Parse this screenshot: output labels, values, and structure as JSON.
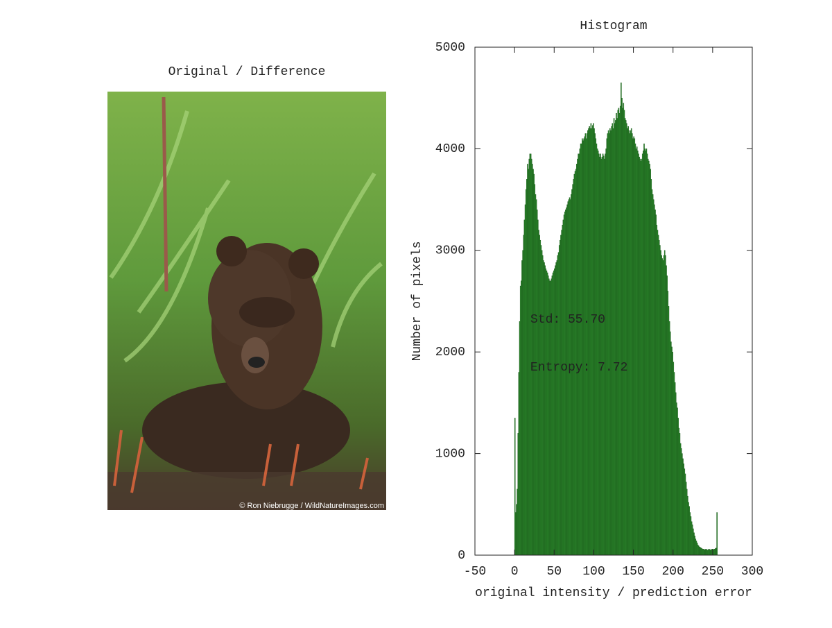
{
  "image_panel": {
    "title": "Original / Difference",
    "credit": "© Ron Niebrugge / WildNatureImages.com"
  },
  "chart_data": {
    "type": "histogram",
    "title": "Histogram",
    "xlabel": "original intensity / prediction error",
    "ylabel": "Number of pixels",
    "annotations": [
      "Std: 55.70",
      "Entropy: 7.72"
    ],
    "color": "#2e8b2e",
    "edgecolor": "#145214",
    "xlim": [
      -50,
      300
    ],
    "ylim": [
      0,
      5000
    ],
    "xticks": [
      -50,
      0,
      50,
      100,
      150,
      200,
      250,
      300
    ],
    "yticks": [
      0,
      1000,
      2000,
      3000,
      4000,
      5000
    ],
    "bins": [
      0,
      1,
      2,
      3,
      4,
      5,
      6,
      7,
      8,
      9,
      10,
      11,
      12,
      13,
      14,
      15,
      16,
      17,
      18,
      19,
      20,
      21,
      22,
      23,
      24,
      25,
      26,
      27,
      28,
      29,
      30,
      31,
      32,
      33,
      34,
      35,
      36,
      37,
      38,
      39,
      40,
      41,
      42,
      43,
      44,
      45,
      46,
      47,
      48,
      49,
      50,
      51,
      52,
      53,
      54,
      55,
      56,
      57,
      58,
      59,
      60,
      61,
      62,
      63,
      64,
      65,
      66,
      67,
      68,
      69,
      70,
      71,
      72,
      73,
      74,
      75,
      76,
      77,
      78,
      79,
      80,
      81,
      82,
      83,
      84,
      85,
      86,
      87,
      88,
      89,
      90,
      91,
      92,
      93,
      94,
      95,
      96,
      97,
      98,
      99,
      100,
      101,
      102,
      103,
      104,
      105,
      106,
      107,
      108,
      109,
      110,
      111,
      112,
      113,
      114,
      115,
      116,
      117,
      118,
      119,
      120,
      121,
      122,
      123,
      124,
      125,
      126,
      127,
      128,
      129,
      130,
      131,
      132,
      133,
      134,
      135,
      136,
      137,
      138,
      139,
      140,
      141,
      142,
      143,
      144,
      145,
      146,
      147,
      148,
      149,
      150,
      151,
      152,
      153,
      154,
      155,
      156,
      157,
      158,
      159,
      160,
      161,
      162,
      163,
      164,
      165,
      166,
      167,
      168,
      169,
      170,
      171,
      172,
      173,
      174,
      175,
      176,
      177,
      178,
      179,
      180,
      181,
      182,
      183,
      184,
      185,
      186,
      187,
      188,
      189,
      190,
      191,
      192,
      193,
      194,
      195,
      196,
      197,
      198,
      199,
      200,
      201,
      202,
      203,
      204,
      205,
      206,
      207,
      208,
      209,
      210,
      211,
      212,
      213,
      214,
      215,
      216,
      217,
      218,
      219,
      220,
      221,
      222,
      223,
      224,
      225,
      226,
      227,
      228,
      229,
      230,
      231,
      232,
      233,
      234,
      235,
      236,
      237,
      238,
      239,
      240,
      241,
      242,
      243,
      244,
      245,
      246,
      247,
      248,
      249,
      250,
      251,
      252,
      253,
      254,
      255,
      256
    ],
    "values": [
      1350,
      420,
      500,
      650,
      1200,
      1800,
      2300,
      2650,
      2700,
      2900,
      3000,
      3150,
      3300,
      3450,
      3600,
      3700,
      3850,
      3800,
      3900,
      3950,
      3950,
      3900,
      3850,
      3800,
      3750,
      3650,
      3550,
      3500,
      3400,
      3300,
      3200,
      3150,
      3100,
      3050,
      3000,
      2950,
      2900,
      2880,
      2850,
      2820,
      2800,
      2780,
      2750,
      2720,
      2700,
      2700,
      2720,
      2750,
      2780,
      2800,
      2820,
      2850,
      2880,
      2900,
      2950,
      2980,
      3050,
      3100,
      3150,
      3200,
      3250,
      3300,
      3350,
      3380,
      3400,
      3420,
      3450,
      3480,
      3500,
      3520,
      3500,
      3550,
      3600,
      3650,
      3700,
      3750,
      3780,
      3800,
      3850,
      3900,
      3950,
      3950,
      4000,
      4050,
      4050,
      4100,
      4080,
      4100,
      4120,
      4150,
      4100,
      4150,
      4180,
      4200,
      4220,
      4200,
      4250,
      4200,
      4230,
      4250,
      4200,
      4150,
      4100,
      4050,
      4000,
      3980,
      3950,
      3920,
      3950,
      3900,
      3920,
      3950,
      3930,
      3900,
      3950,
      4000,
      4100,
      4150,
      4180,
      4150,
      4200,
      4180,
      4220,
      4250,
      4200,
      4300,
      4250,
      4280,
      4350,
      4300,
      4380,
      4400,
      4350,
      4420,
      4650,
      4500,
      4400,
      4450,
      4380,
      4300,
      4280,
      4250,
      4200,
      4220,
      4180,
      4150,
      4180,
      4200,
      4150,
      4100,
      4120,
      4100,
      4050,
      4000,
      4020,
      3980,
      3950,
      3920,
      3900,
      3880,
      3900,
      3950,
      3980,
      4050,
      4000,
      3980,
      4000,
      3950,
      3900,
      3880,
      3850,
      3800,
      3700,
      3600,
      3550,
      3500,
      3450,
      3400,
      3350,
      3250,
      3200,
      3150,
      3100,
      3050,
      3000,
      2950,
      2920,
      2900,
      2950,
      3000,
      2950,
      2850,
      2750,
      2600,
      2450,
      2300,
      2200,
      2100,
      2050,
      2000,
      1900,
      1800,
      1700,
      1600,
      1500,
      1450,
      1350,
      1250,
      1200,
      1100,
      1050,
      1000,
      950,
      900,
      850,
      800,
      720,
      650,
      580,
      520,
      480,
      420,
      380,
      330,
      300,
      260,
      220,
      190,
      160,
      140,
      120,
      100,
      90,
      80,
      75,
      70,
      65,
      60,
      60,
      55,
      55,
      60,
      55,
      50,
      55,
      60,
      55,
      50,
      55,
      60,
      60,
      55,
      60,
      65,
      70,
      420
    ]
  }
}
